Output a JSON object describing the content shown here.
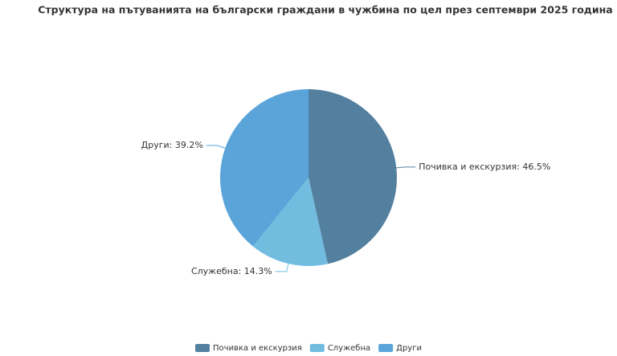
{
  "chart_data": {
    "type": "pie",
    "title": "Структура на пътуванията на български граждани в чужбина по цел през септември 2025 година",
    "categories": [
      "Почивка и екскурзия",
      "Служебна",
      "Други"
    ],
    "values": [
      46.5,
      14.3,
      39.2
    ],
    "value_labels": [
      "Почивка и екскурзия: 46.5%",
      "Служебна: 14.3%",
      "Други: 39.2%"
    ],
    "colors": [
      "#54809f",
      "#72bce0",
      "#5ba4d9"
    ],
    "legend": "bottom"
  }
}
